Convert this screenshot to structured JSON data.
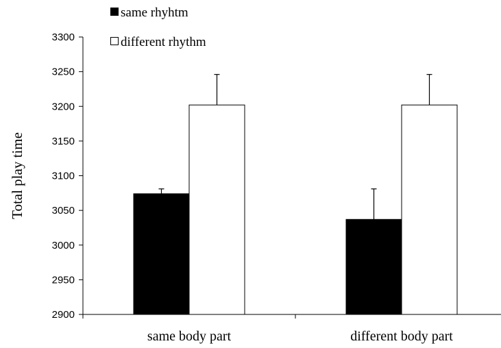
{
  "chart_data": {
    "type": "bar",
    "title": "",
    "xlabel": "",
    "ylabel": "Total play time",
    "ylim": [
      2900,
      3300
    ],
    "ytick_step": 50,
    "grid": false,
    "legend_position": "top-left",
    "categories": [
      "same body part",
      "different body part"
    ],
    "series": [
      {
        "name": "same rhyhtm",
        "values": [
          3074,
          3037
        ],
        "errors": [
          7,
          44
        ],
        "color": "#000000"
      },
      {
        "name": "different rhythm",
        "values": [
          3202,
          3202
        ],
        "errors": [
          44,
          44
        ],
        "color": "#ffffff"
      }
    ]
  }
}
